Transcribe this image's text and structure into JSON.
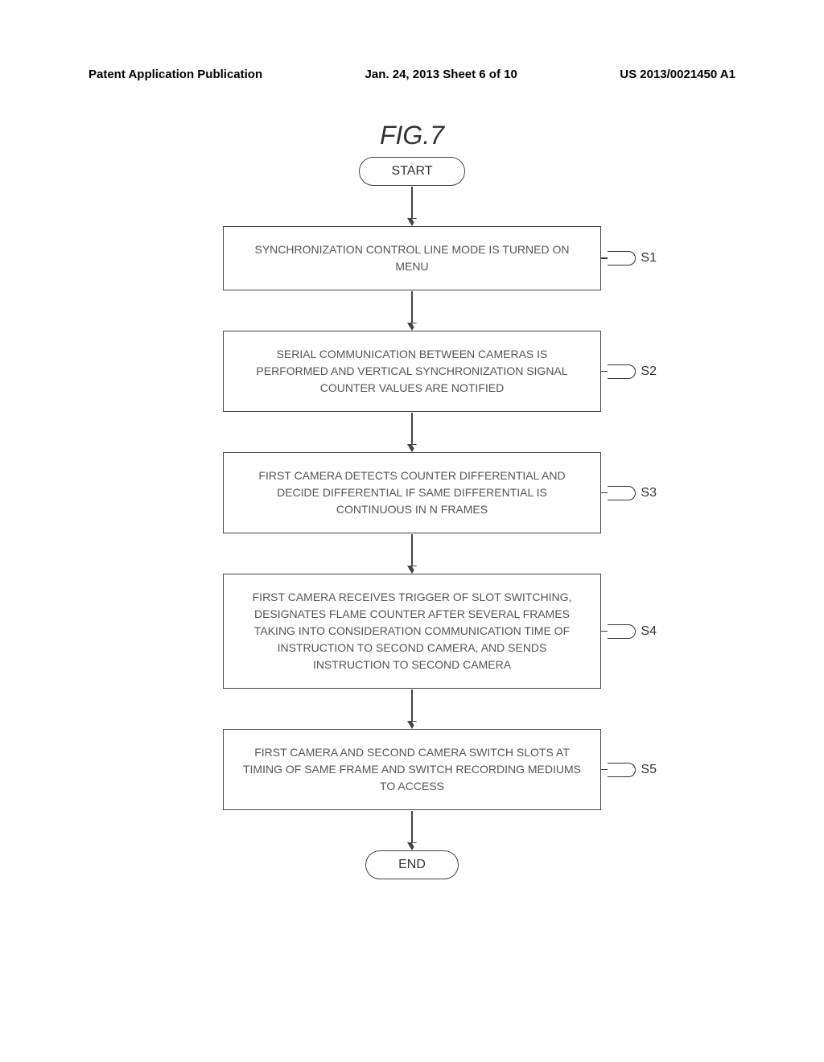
{
  "header": {
    "left": "Patent Application Publication",
    "center": "Jan. 24, 2013  Sheet 6 of 10",
    "right": "US 2013/0021450 A1"
  },
  "figure_title": "FIG.7",
  "flowchart": {
    "type": "flowchart",
    "start_label": "START",
    "end_label": "END",
    "steps": [
      {
        "id": "S1",
        "text": "SYNCHRONIZATION CONTROL LINE MODE IS TURNED ON MENU"
      },
      {
        "id": "S2",
        "text": "SERIAL COMMUNICATION BETWEEN CAMERAS IS PERFORMED AND VERTICAL SYNCHRONIZATION SIGNAL COUNTER VALUES ARE NOTIFIED"
      },
      {
        "id": "S3",
        "text": "FIRST CAMERA DETECTS COUNTER DIFFERENTIAL AND DECIDE DIFFERENTIAL IF SAME DIFFERENTIAL IS CONTINUOUS IN N FRAMES"
      },
      {
        "id": "S4",
        "text": "FIRST CAMERA RECEIVES TRIGGER OF SLOT SWITCHING, DESIGNATES FLAME COUNTER AFTER SEVERAL FRAMES TAKING INTO CONSIDERATION COMMUNICATION TIME OF INSTRUCTION TO SECOND CAMERA, AND SENDS INSTRUCTION TO SECOND CAMERA"
      },
      {
        "id": "S5",
        "text": "FIRST CAMERA AND SECOND CAMERA SWITCH SLOTS AT TIMING OF SAME FRAME AND SWITCH RECORDING MEDIUMS TO ACCESS"
      }
    ],
    "colors": {
      "border": "#444444",
      "text": "#555555",
      "background": "#ffffff"
    }
  }
}
